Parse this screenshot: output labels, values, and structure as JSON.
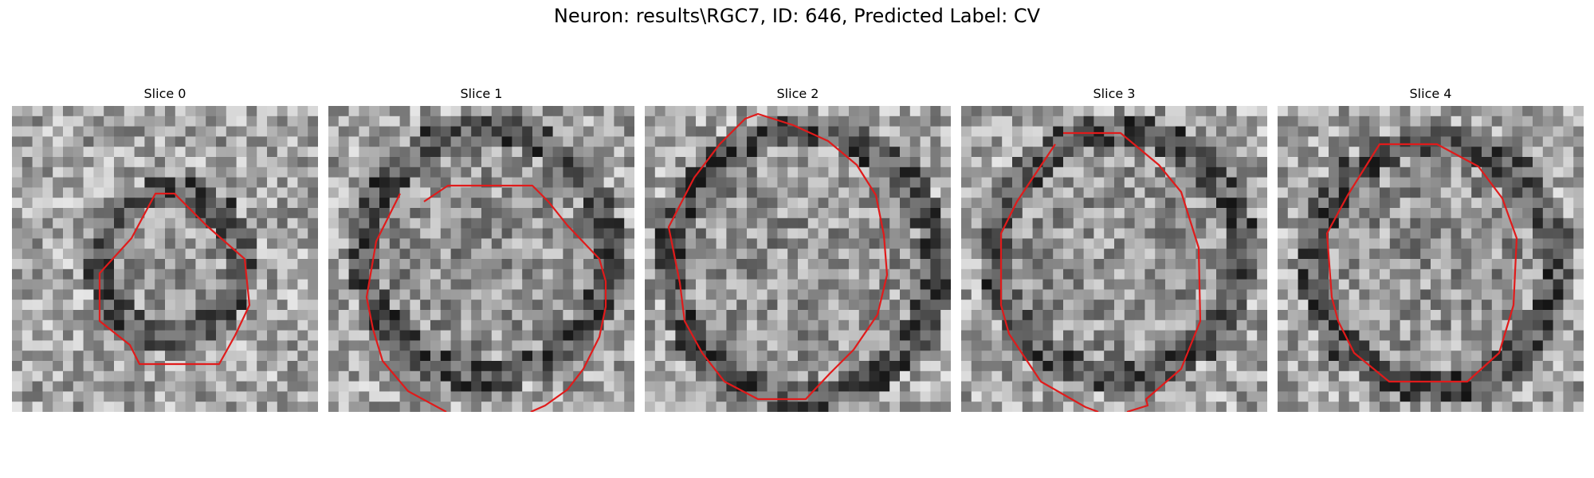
{
  "figure": {
    "title": "Neuron: results\\RGC7, ID: 646, Predicted Label: CV"
  },
  "contour_color": "#e01b1b",
  "panels": [
    {
      "title": "Slice 0",
      "image_kind": "grayscale-microscopy-patch",
      "contour": "red-polygon"
    },
    {
      "title": "Slice 1",
      "image_kind": "grayscale-microscopy-patch",
      "contour": "red-polygon"
    },
    {
      "title": "Slice 2",
      "image_kind": "grayscale-microscopy-patch",
      "contour": "red-polygon"
    },
    {
      "title": "Slice 3",
      "image_kind": "grayscale-microscopy-patch",
      "contour": "red-polygon"
    },
    {
      "title": "Slice 4",
      "image_kind": "grayscale-microscopy-patch",
      "contour": "red-polygon"
    }
  ]
}
